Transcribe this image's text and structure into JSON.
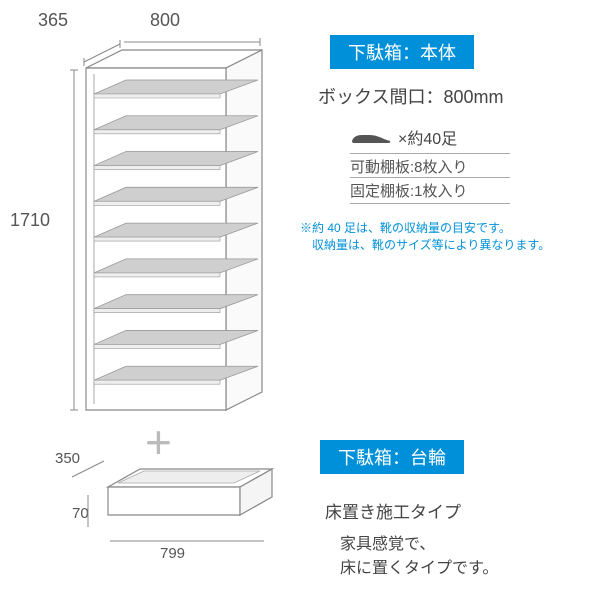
{
  "cabinet": {
    "depth": "365",
    "width": "800",
    "height": "1710",
    "shelf_count": 9,
    "outline_color": "#888888",
    "shelf_fill": "#cfcfcf",
    "shelf_stroke": "#999999"
  },
  "info": {
    "tag_main": "下駄箱：本体",
    "box_width": "ボックス間口：800mm",
    "shoe_capacity": "×約40足",
    "shelf_movable": "可動棚板:8枚入り",
    "shelf_fixed": "固定棚板:1枚入り",
    "note_line1": "※約 40 足は、靴の収納量の目安です。",
    "note_line2": "　収納量は、靴のサイズ等により異なります。"
  },
  "base": {
    "depth": "350",
    "height": "70",
    "width": "799",
    "tag": "下駄箱：台輪",
    "type_label": "床置き施工タイプ",
    "desc_line1": "家具感覚で、",
    "desc_line2": "床に置くタイプです。"
  },
  "colors": {
    "accent": "#0090d9",
    "text": "#444444",
    "dim": "#555555",
    "plus": "#bbbbbb",
    "shoe": "#555555"
  }
}
